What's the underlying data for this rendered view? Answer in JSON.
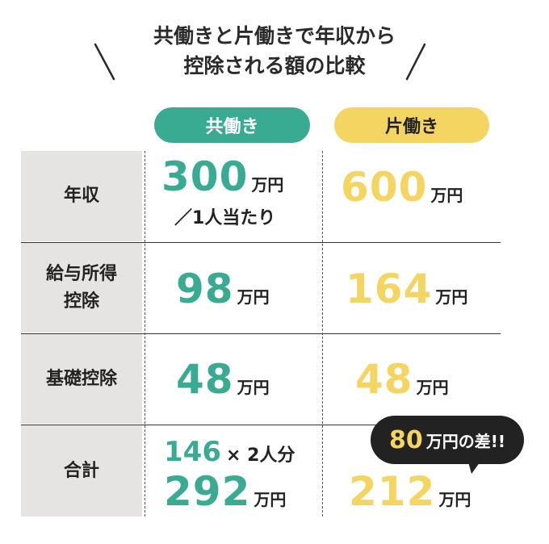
{
  "title": {
    "line1": "共働きと片働きで年収から",
    "line2": "控除される額の比較"
  },
  "columns": {
    "dual_income": "共働き",
    "single_income": "片働き"
  },
  "rows": [
    {
      "label_line1": "年収",
      "label_line2": ""
    },
    {
      "label_line1": "給与所得",
      "label_line2": "控除"
    },
    {
      "label_line1": "基礎控除",
      "label_line2": ""
    },
    {
      "label_line1": "合計",
      "label_line2": ""
    }
  ],
  "dual": {
    "income": "300",
    "income_unit": "万円",
    "income_note": "／1人当たり",
    "employment_deduction": "98",
    "employment_unit": "万円",
    "basic_deduction": "48",
    "basic_unit": "万円",
    "total_formula_num": "146",
    "total_formula_text": "× 2人分",
    "total": "292",
    "total_unit": "万円"
  },
  "single": {
    "income": "600",
    "income_unit": "万円",
    "employment_deduction": "164",
    "employment_unit": "万円",
    "basic_deduction": "48",
    "basic_unit": "万円",
    "total": "212",
    "total_unit": "万円"
  },
  "difference": {
    "number": "80",
    "text": "万円の差!!"
  },
  "colors": {
    "dual_accent": "#3aab93",
    "single_accent": "#f4d562",
    "row_header_bg": "#e5e4e2",
    "bubble_bg": "#222222",
    "text": "#222222"
  }
}
